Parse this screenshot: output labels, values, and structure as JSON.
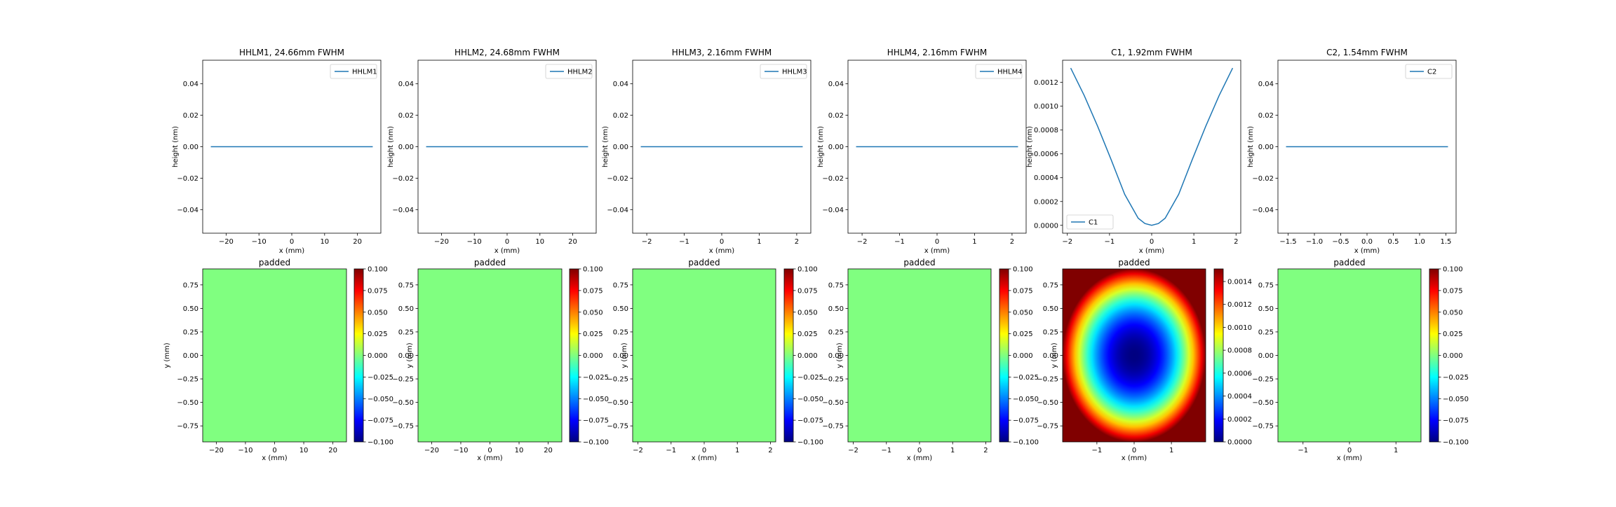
{
  "figure": {
    "background": "#ffffff",
    "line_color": "#1f77b4"
  },
  "chart_data": [
    {
      "type": "line",
      "title": "HHLM1, 24.66mm FWHM",
      "xlabel": "x (mm)",
      "ylabel": "height (nm)",
      "xlim": [
        -27.13,
        27.13
      ],
      "ylim": [
        -0.055,
        0.055
      ],
      "xticks": [
        -20,
        -10,
        0,
        10,
        20
      ],
      "yticks": [
        -0.04,
        -0.02,
        0.0,
        0.02,
        0.04
      ],
      "xtick_labels": [
        "−20",
        "−10",
        "0",
        "10",
        "20"
      ],
      "ytick_labels": [
        "−0.04",
        "−0.02",
        "0.00",
        "0.02",
        "0.04"
      ],
      "legend": {
        "position": "upper-right"
      },
      "series": [
        {
          "name": "HHLM1",
          "x": [
            -24.66,
            24.66
          ],
          "y": [
            0,
            0
          ]
        }
      ]
    },
    {
      "type": "line",
      "title": "HHLM2, 24.68mm FWHM",
      "xlabel": "x (mm)",
      "ylabel": "height (nm)",
      "xlim": [
        -27.15,
        27.15
      ],
      "ylim": [
        -0.055,
        0.055
      ],
      "xticks": [
        -20,
        -10,
        0,
        10,
        20
      ],
      "yticks": [
        -0.04,
        -0.02,
        0.0,
        0.02,
        0.04
      ],
      "xtick_labels": [
        "−20",
        "−10",
        "0",
        "10",
        "20"
      ],
      "ytick_labels": [
        "−0.04",
        "−0.02",
        "0.00",
        "0.02",
        "0.04"
      ],
      "legend": {
        "position": "upper-right"
      },
      "series": [
        {
          "name": "HHLM2",
          "x": [
            -24.68,
            24.68
          ],
          "y": [
            0,
            0
          ]
        }
      ]
    },
    {
      "type": "line",
      "title": "HHLM3, 2.16mm FWHM",
      "xlabel": "x (mm)",
      "ylabel": "height (nm)",
      "xlim": [
        -2.376,
        2.376
      ],
      "ylim": [
        -0.055,
        0.055
      ],
      "xticks": [
        -2,
        -1,
        0,
        1,
        2
      ],
      "yticks": [
        -0.04,
        -0.02,
        0.0,
        0.02,
        0.04
      ],
      "xtick_labels": [
        "−2",
        "−1",
        "0",
        "1",
        "2"
      ],
      "ytick_labels": [
        "−0.04",
        "−0.02",
        "0.00",
        "0.02",
        "0.04"
      ],
      "legend": {
        "position": "upper-right"
      },
      "series": [
        {
          "name": "HHLM3",
          "x": [
            -2.16,
            2.16
          ],
          "y": [
            0,
            0
          ]
        }
      ]
    },
    {
      "type": "line",
      "title": "HHLM4, 2.16mm FWHM",
      "xlabel": "x (mm)",
      "ylabel": "height (nm)",
      "xlim": [
        -2.376,
        2.376
      ],
      "ylim": [
        -0.055,
        0.055
      ],
      "xticks": [
        -2,
        -1,
        0,
        1,
        2
      ],
      "yticks": [
        -0.04,
        -0.02,
        0.0,
        0.02,
        0.04
      ],
      "xtick_labels": [
        "−2",
        "−1",
        "0",
        "1",
        "2"
      ],
      "ytick_labels": [
        "−0.04",
        "−0.02",
        "0.00",
        "0.02",
        "0.04"
      ],
      "legend": {
        "position": "upper-right"
      },
      "series": [
        {
          "name": "HHLM4",
          "x": [
            -2.16,
            2.16
          ],
          "y": [
            0,
            0
          ]
        }
      ]
    },
    {
      "type": "line",
      "title": "C1, 1.92mm FWHM",
      "xlabel": "x (mm)",
      "ylabel": "height (nm)",
      "xlim": [
        -2.112,
        2.112
      ],
      "ylim": [
        -6.6e-05,
        0.001386
      ],
      "xticks": [
        -2,
        -1,
        0,
        1,
        2
      ],
      "yticks": [
        0,
        0.0002,
        0.0004,
        0.0006,
        0.0008,
        0.001,
        0.0012
      ],
      "xtick_labels": [
        "−2",
        "−1",
        "0",
        "1",
        "2"
      ],
      "ytick_labels": [
        "0.0000",
        "0.0002",
        "0.0004",
        "0.0006",
        "0.0008",
        "0.0010",
        "0.0012"
      ],
      "legend": {
        "position": "lower-left"
      },
      "series": [
        {
          "name": "C1",
          "x": [
            -1.92,
            -1.6,
            -1.28,
            -0.96,
            -0.64,
            -0.32,
            -0.16,
            0,
            0.16,
            0.32,
            0.64,
            0.96,
            1.28,
            1.6,
            1.92
          ],
          "y": [
            0.00132,
            0.00109,
            0.00083,
            0.00055,
            0.00026,
            6e-05,
            1.5e-05,
            0,
            1.5e-05,
            6e-05,
            0.00026,
            0.00055,
            0.00083,
            0.00109,
            0.00132
          ]
        }
      ]
    },
    {
      "type": "line",
      "title": "C2, 1.54mm FWHM",
      "xlabel": "x (mm)",
      "ylabel": "height (nm)",
      "xlim": [
        -1.694,
        1.694
      ],
      "ylim": [
        -0.055,
        0.055
      ],
      "xticks": [
        -1.5,
        -1.0,
        -0.5,
        0,
        0.5,
        1.0,
        1.5
      ],
      "yticks": [
        -0.04,
        -0.02,
        0.0,
        0.02,
        0.04
      ],
      "xtick_labels": [
        "−1.5",
        "−1.0",
        "−0.5",
        "0.0",
        "0.5",
        "1.0",
        "1.5"
      ],
      "ytick_labels": [
        "−0.04",
        "−0.02",
        "0.00",
        "0.02",
        "0.04"
      ],
      "legend": {
        "position": "upper-right"
      },
      "series": [
        {
          "name": "C2",
          "x": [
            -1.54,
            1.54
          ],
          "y": [
            0,
            0
          ]
        }
      ]
    },
    {
      "type": "heatmap",
      "title": "padded",
      "xlabel": "x (mm)",
      "ylabel": "y (mm)",
      "colormap": "jet",
      "xlim": [
        -24.66,
        24.66
      ],
      "ylim": [
        -0.92,
        0.92
      ],
      "xticks": [
        -20,
        -10,
        0,
        10,
        20
      ],
      "yticks": [
        -0.75,
        -0.5,
        -0.25,
        0,
        0.25,
        0.5,
        0.75
      ],
      "xtick_labels": [
        "−20",
        "−10",
        "0",
        "10",
        "20"
      ],
      "ytick_labels": [
        "−0.75",
        "−0.50",
        "−0.25",
        "0.00",
        "0.25",
        "0.50",
        "0.75"
      ],
      "field": {
        "kind": "constant",
        "value": 0
      },
      "colorbar": {
        "vmin": -0.1,
        "vmax": 0.1,
        "ticks": [
          -0.1,
          -0.075,
          -0.05,
          -0.025,
          0,
          0.025,
          0.05,
          0.075,
          0.1
        ],
        "tick_labels": [
          "−0.100",
          "−0.075",
          "−0.050",
          "−0.025",
          "0.000",
          "0.025",
          "0.050",
          "0.075",
          "0.100"
        ]
      }
    },
    {
      "type": "heatmap",
      "title": "padded",
      "xlabel": "x (mm)",
      "ylabel": "y (mm)",
      "colormap": "jet",
      "xlim": [
        -24.68,
        24.68
      ],
      "ylim": [
        -0.92,
        0.92
      ],
      "xticks": [
        -20,
        -10,
        0,
        10,
        20
      ],
      "yticks": [
        -0.75,
        -0.5,
        -0.25,
        0,
        0.25,
        0.5,
        0.75
      ],
      "xtick_labels": [
        "−20",
        "−10",
        "0",
        "10",
        "20"
      ],
      "ytick_labels": [
        "−0.75",
        "−0.50",
        "−0.25",
        "0.00",
        "0.25",
        "0.50",
        "0.75"
      ],
      "field": {
        "kind": "constant",
        "value": 0
      },
      "colorbar": {
        "vmin": -0.1,
        "vmax": 0.1,
        "ticks": [
          -0.1,
          -0.075,
          -0.05,
          -0.025,
          0,
          0.025,
          0.05,
          0.075,
          0.1
        ],
        "tick_labels": [
          "−0.100",
          "−0.075",
          "−0.050",
          "−0.025",
          "0.000",
          "0.025",
          "0.050",
          "0.075",
          "0.100"
        ]
      }
    },
    {
      "type": "heatmap",
      "title": "padded",
      "xlabel": "x (mm)",
      "ylabel": "y (mm)",
      "colormap": "jet",
      "xlim": [
        -2.16,
        2.16
      ],
      "ylim": [
        -0.92,
        0.92
      ],
      "xticks": [
        -2,
        -1,
        0,
        1,
        2
      ],
      "yticks": [
        -0.75,
        -0.5,
        -0.25,
        0,
        0.25,
        0.5,
        0.75
      ],
      "xtick_labels": [
        "−2",
        "−1",
        "0",
        "1",
        "2"
      ],
      "ytick_labels": [
        "−0.75",
        "−0.50",
        "−0.25",
        "0.00",
        "0.25",
        "0.50",
        "0.75"
      ],
      "field": {
        "kind": "constant",
        "value": 0
      },
      "colorbar": {
        "vmin": -0.1,
        "vmax": 0.1,
        "ticks": [
          -0.1,
          -0.075,
          -0.05,
          -0.025,
          0,
          0.025,
          0.05,
          0.075,
          0.1
        ],
        "tick_labels": [
          "−0.100",
          "−0.075",
          "−0.050",
          "−0.025",
          "0.000",
          "0.025",
          "0.050",
          "0.075",
          "0.100"
        ]
      }
    },
    {
      "type": "heatmap",
      "title": "padded",
      "xlabel": "x (mm)",
      "ylabel": "y (mm)",
      "colormap": "jet",
      "xlim": [
        -2.16,
        2.16
      ],
      "ylim": [
        -0.92,
        0.92
      ],
      "xticks": [
        -2,
        -1,
        0,
        1,
        2
      ],
      "yticks": [
        -0.75,
        -0.5,
        -0.25,
        0,
        0.25,
        0.5,
        0.75
      ],
      "xtick_labels": [
        "−2",
        "−1",
        "0",
        "1",
        "2"
      ],
      "ytick_labels": [
        "−0.75",
        "−0.50",
        "−0.25",
        "0.00",
        "0.25",
        "0.50",
        "0.75"
      ],
      "field": {
        "kind": "constant",
        "value": 0
      },
      "colorbar": {
        "vmin": -0.1,
        "vmax": 0.1,
        "ticks": [
          -0.1,
          -0.075,
          -0.05,
          -0.025,
          0,
          0.025,
          0.05,
          0.075,
          0.1
        ],
        "tick_labels": [
          "−0.100",
          "−0.075",
          "−0.050",
          "−0.025",
          "0.000",
          "0.025",
          "0.050",
          "0.075",
          "0.100"
        ]
      }
    },
    {
      "type": "heatmap",
      "title": "padded",
      "xlabel": "x (mm)",
      "ylabel": "y (mm)",
      "colormap": "jet",
      "xlim": [
        -1.92,
        1.92
      ],
      "ylim": [
        -0.92,
        0.92
      ],
      "xticks": [
        -1,
        0,
        1
      ],
      "yticks": [
        -0.75,
        -0.5,
        -0.25,
        0,
        0.25,
        0.5,
        0.75
      ],
      "xtick_labels": [
        "−1",
        "0",
        "1"
      ],
      "ytick_labels": [
        "−0.75",
        "−0.50",
        "−0.25",
        "0.00",
        "0.25",
        "0.50",
        "0.75"
      ],
      "field": {
        "kind": "elliptical-paraboloid",
        "center": [
          0,
          0
        ],
        "sx": 1.92,
        "sy": 0.92,
        "min": 0,
        "max": 0.00151
      },
      "colorbar": {
        "vmin": 0,
        "vmax": 0.00151,
        "ticks": [
          0,
          0.0002,
          0.0004,
          0.0006,
          0.0008,
          0.001,
          0.0012,
          0.0014
        ],
        "tick_labels": [
          "0.0000",
          "0.0002",
          "0.0004",
          "0.0006",
          "0.0008",
          "0.0010",
          "0.0012",
          "0.0014"
        ]
      }
    },
    {
      "type": "heatmap",
      "title": "padded",
      "xlabel": "x (mm)",
      "ylabel": "",
      "colormap": "jet",
      "xlim": [
        -1.54,
        1.54
      ],
      "ylim": [
        -0.92,
        0.92
      ],
      "xticks": [
        -1,
        0,
        1
      ],
      "yticks": [
        -0.75,
        -0.5,
        -0.25,
        0,
        0.25,
        0.5,
        0.75
      ],
      "xtick_labels": [
        "−1",
        "0",
        "1"
      ],
      "ytick_labels": [
        "−0.75",
        "−0.50",
        "−0.25",
        "0.00",
        "0.25",
        "0.50",
        "0.75"
      ],
      "field": {
        "kind": "constant",
        "value": 0
      },
      "colorbar": {
        "vmin": -0.1,
        "vmax": 0.1,
        "ticks": [
          -0.1,
          -0.075,
          -0.05,
          -0.025,
          0,
          0.025,
          0.05,
          0.075,
          0.1
        ],
        "tick_labels": [
          "−0.100",
          "−0.075",
          "−0.050",
          "−0.025",
          "0.000",
          "0.025",
          "0.050",
          "0.075",
          "0.100"
        ]
      }
    }
  ]
}
